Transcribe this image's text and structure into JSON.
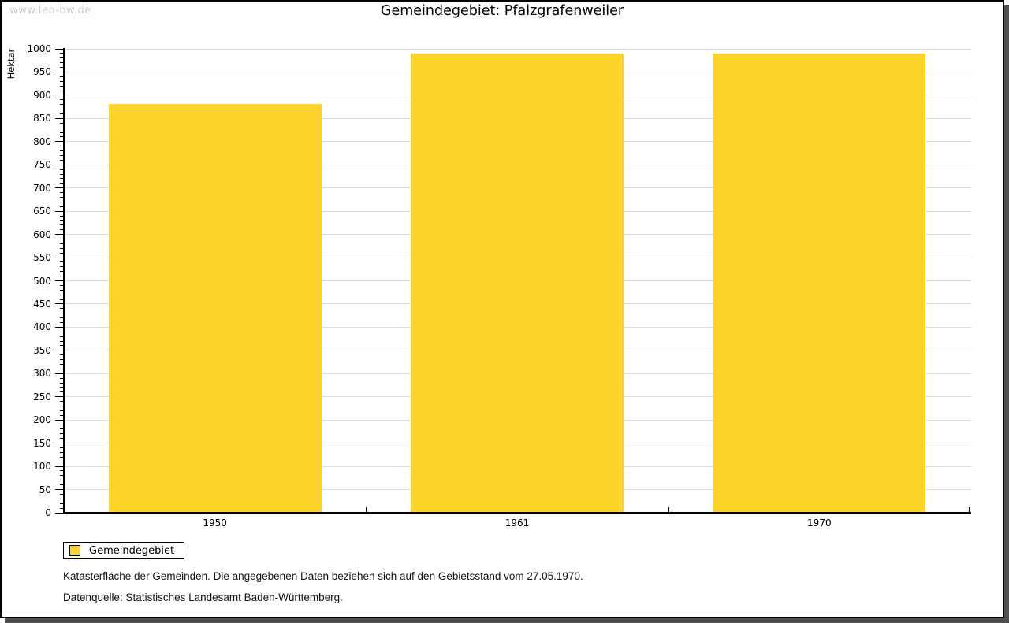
{
  "watermark": "www.leo-bw.de",
  "chart_data": {
    "type": "bar",
    "title": "Gemeindegebiet: Pfalzgrafenweiler",
    "ylabel": "Hektar",
    "xlabel": "",
    "categories": [
      "1950",
      "1961",
      "1970"
    ],
    "series": [
      {
        "name": "Gemeindegebiet",
        "color": "#FDD42C",
        "values": [
          882,
          989,
          989
        ]
      }
    ],
    "ylim": [
      0,
      1000
    ],
    "ytick_major": 50,
    "ytick_minor": 10,
    "grid": "horizontal-major",
    "gridline_color": "#dcdcdc",
    "axis_color": "#000000",
    "legend_position": "bottom-left"
  },
  "legend": {
    "label": "Gemeindegebiet",
    "swatch_color": "#FDD42C"
  },
  "footnotes": [
    "Katasterfläche der Gemeinden. Die angegebenen Daten beziehen sich auf den Gebietsstand vom 27.05.1970.",
    "Datenquelle: Statistisches Landesamt Baden-Württemberg."
  ]
}
